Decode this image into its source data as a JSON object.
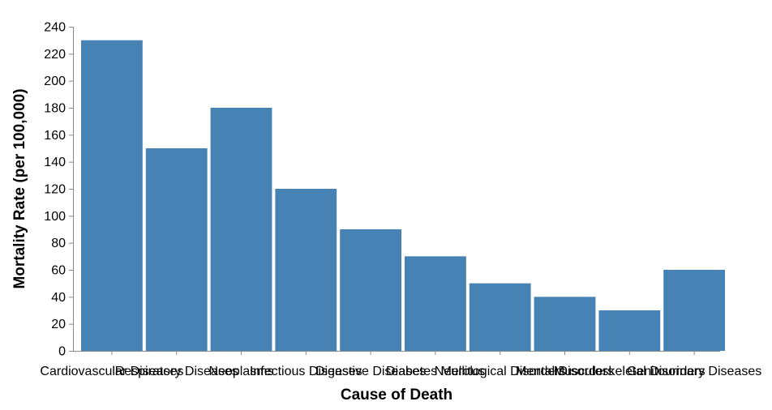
{
  "chart_data": {
    "type": "bar",
    "title": "",
    "xlabel": "Cause of Death",
    "ylabel": "Mortality Rate (per 100,000)",
    "categories": [
      "Cardiovascular Diseases",
      "Respiratory Diseases",
      "Neoplasms",
      "Infectious Diseases",
      "Digestive Diseases",
      "Diabetes Mellitus",
      "Neurological Disorders",
      "Mental Disorders",
      "Musculoskeletal Disorders",
      "Genitourinary Diseases"
    ],
    "values": [
      230,
      150,
      180,
      120,
      90,
      70,
      50,
      40,
      30,
      60
    ],
    "ylim": [
      0,
      240
    ],
    "yticks": [
      0,
      20,
      40,
      60,
      80,
      100,
      120,
      140,
      160,
      180,
      200,
      220,
      240
    ],
    "grid": false,
    "legend": "none",
    "bar_color": "#4682b4"
  }
}
